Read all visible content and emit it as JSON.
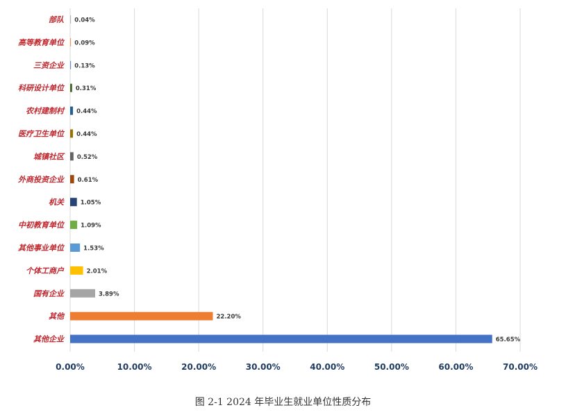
{
  "caption": "图 2-1 2024 年毕业生就业单位性质分布",
  "chart_data": {
    "type": "bar",
    "orientation": "horizontal",
    "categories": [
      "部队",
      "高等教育单位",
      "三资企业",
      "科研设计单位",
      "农村建制村",
      "医疗卫生单位",
      "城镇社区",
      "外商投资企业",
      "机关",
      "中初教育单位",
      "其他事业单位",
      "个体工商户",
      "国有企业",
      "其他",
      "其他企业"
    ],
    "values": [
      0.04,
      0.09,
      0.13,
      0.31,
      0.44,
      0.44,
      0.52,
      0.61,
      1.05,
      1.09,
      1.53,
      2.01,
      3.89,
      22.2,
      65.65
    ],
    "value_labels": [
      "0.04%",
      "0.09%",
      "0.13%",
      "0.31%",
      "0.44%",
      "0.44%",
      "0.52%",
      "0.61%",
      "1.05%",
      "1.09%",
      "1.53%",
      "2.01%",
      "3.89%",
      "22.20%",
      "65.65%"
    ],
    "colors": [
      "#4472c4",
      "#ed7d31",
      "#a5a5a5",
      "#ffc000",
      "#5b9bd5",
      "#70ad47",
      "#264478",
      "#9e480e",
      "#636363",
      "#997300",
      "#255e91",
      "#43682b",
      "#698ed0",
      "#f1975a",
      "#b7b7b7"
    ],
    "xlim": [
      0,
      70
    ],
    "x_ticks": [
      0,
      10,
      20,
      30,
      40,
      50,
      60,
      70
    ],
    "x_tick_labels": [
      "0.00%",
      "10.00%",
      "20.00%",
      "30.00%",
      "40.00%",
      "50.00%",
      "60.00%",
      "70.00%"
    ],
    "grid": true,
    "title": "",
    "xlabel": "",
    "ylabel": ""
  }
}
